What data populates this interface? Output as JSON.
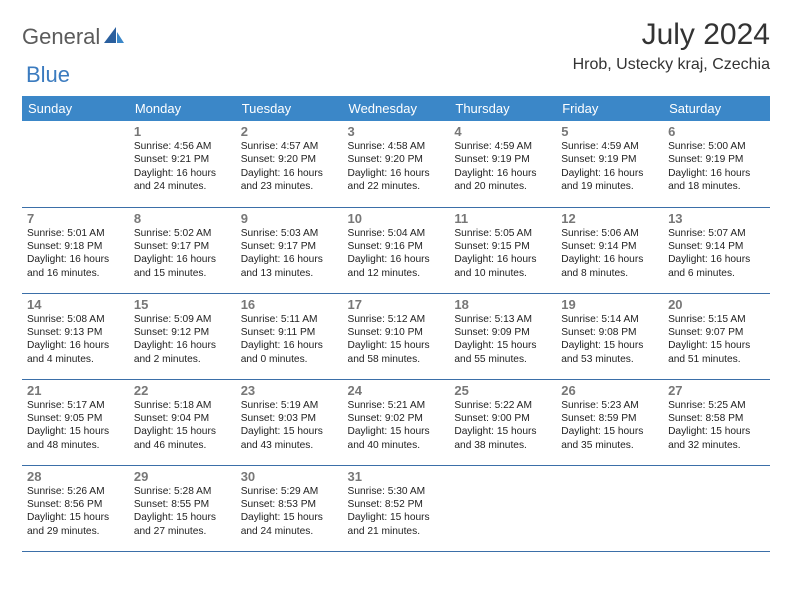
{
  "brand": {
    "part1": "General",
    "part2": "Blue"
  },
  "header": {
    "title": "July 2024",
    "location": "Hrob, Ustecky kraj, Czechia"
  },
  "colors": {
    "header_bg": "#3b87c8",
    "header_text": "#ffffff",
    "row_border": "#3b6fa8",
    "daynum": "#777777",
    "body_text": "#222222",
    "brand_gray": "#5b5b5b",
    "brand_blue": "#3b7bbf",
    "background": "#ffffff"
  },
  "calendar": {
    "day_labels": [
      "Sunday",
      "Monday",
      "Tuesday",
      "Wednesday",
      "Thursday",
      "Friday",
      "Saturday"
    ],
    "weeks": [
      [
        {
          "empty": true
        },
        {
          "n": "1",
          "sr": "4:56 AM",
          "ss": "9:21 PM",
          "dl": "16 hours and 24 minutes."
        },
        {
          "n": "2",
          "sr": "4:57 AM",
          "ss": "9:20 PM",
          "dl": "16 hours and 23 minutes."
        },
        {
          "n": "3",
          "sr": "4:58 AM",
          "ss": "9:20 PM",
          "dl": "16 hours and 22 minutes."
        },
        {
          "n": "4",
          "sr": "4:59 AM",
          "ss": "9:19 PM",
          "dl": "16 hours and 20 minutes."
        },
        {
          "n": "5",
          "sr": "4:59 AM",
          "ss": "9:19 PM",
          "dl": "16 hours and 19 minutes."
        },
        {
          "n": "6",
          "sr": "5:00 AM",
          "ss": "9:19 PM",
          "dl": "16 hours and 18 minutes."
        }
      ],
      [
        {
          "n": "7",
          "sr": "5:01 AM",
          "ss": "9:18 PM",
          "dl": "16 hours and 16 minutes."
        },
        {
          "n": "8",
          "sr": "5:02 AM",
          "ss": "9:17 PM",
          "dl": "16 hours and 15 minutes."
        },
        {
          "n": "9",
          "sr": "5:03 AM",
          "ss": "9:17 PM",
          "dl": "16 hours and 13 minutes."
        },
        {
          "n": "10",
          "sr": "5:04 AM",
          "ss": "9:16 PM",
          "dl": "16 hours and 12 minutes."
        },
        {
          "n": "11",
          "sr": "5:05 AM",
          "ss": "9:15 PM",
          "dl": "16 hours and 10 minutes."
        },
        {
          "n": "12",
          "sr": "5:06 AM",
          "ss": "9:14 PM",
          "dl": "16 hours and 8 minutes."
        },
        {
          "n": "13",
          "sr": "5:07 AM",
          "ss": "9:14 PM",
          "dl": "16 hours and 6 minutes."
        }
      ],
      [
        {
          "n": "14",
          "sr": "5:08 AM",
          "ss": "9:13 PM",
          "dl": "16 hours and 4 minutes."
        },
        {
          "n": "15",
          "sr": "5:09 AM",
          "ss": "9:12 PM",
          "dl": "16 hours and 2 minutes."
        },
        {
          "n": "16",
          "sr": "5:11 AM",
          "ss": "9:11 PM",
          "dl": "16 hours and 0 minutes."
        },
        {
          "n": "17",
          "sr": "5:12 AM",
          "ss": "9:10 PM",
          "dl": "15 hours and 58 minutes."
        },
        {
          "n": "18",
          "sr": "5:13 AM",
          "ss": "9:09 PM",
          "dl": "15 hours and 55 minutes."
        },
        {
          "n": "19",
          "sr": "5:14 AM",
          "ss": "9:08 PM",
          "dl": "15 hours and 53 minutes."
        },
        {
          "n": "20",
          "sr": "5:15 AM",
          "ss": "9:07 PM",
          "dl": "15 hours and 51 minutes."
        }
      ],
      [
        {
          "n": "21",
          "sr": "5:17 AM",
          "ss": "9:05 PM",
          "dl": "15 hours and 48 minutes."
        },
        {
          "n": "22",
          "sr": "5:18 AM",
          "ss": "9:04 PM",
          "dl": "15 hours and 46 minutes."
        },
        {
          "n": "23",
          "sr": "5:19 AM",
          "ss": "9:03 PM",
          "dl": "15 hours and 43 minutes."
        },
        {
          "n": "24",
          "sr": "5:21 AM",
          "ss": "9:02 PM",
          "dl": "15 hours and 40 minutes."
        },
        {
          "n": "25",
          "sr": "5:22 AM",
          "ss": "9:00 PM",
          "dl": "15 hours and 38 minutes."
        },
        {
          "n": "26",
          "sr": "5:23 AM",
          "ss": "8:59 PM",
          "dl": "15 hours and 35 minutes."
        },
        {
          "n": "27",
          "sr": "5:25 AM",
          "ss": "8:58 PM",
          "dl": "15 hours and 32 minutes."
        }
      ],
      [
        {
          "n": "28",
          "sr": "5:26 AM",
          "ss": "8:56 PM",
          "dl": "15 hours and 29 minutes."
        },
        {
          "n": "29",
          "sr": "5:28 AM",
          "ss": "8:55 PM",
          "dl": "15 hours and 27 minutes."
        },
        {
          "n": "30",
          "sr": "5:29 AM",
          "ss": "8:53 PM",
          "dl": "15 hours and 24 minutes."
        },
        {
          "n": "31",
          "sr": "5:30 AM",
          "ss": "8:52 PM",
          "dl": "15 hours and 21 minutes."
        },
        {
          "empty": true
        },
        {
          "empty": true
        },
        {
          "empty": true
        }
      ]
    ]
  },
  "labels": {
    "sunrise": "Sunrise:",
    "sunset": "Sunset:",
    "daylight": "Daylight:"
  }
}
